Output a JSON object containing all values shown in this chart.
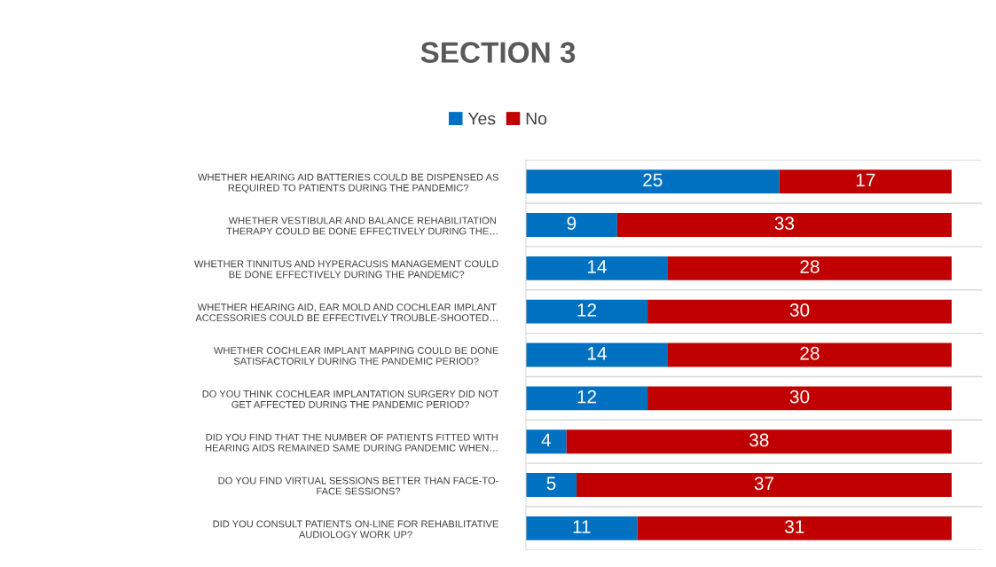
{
  "chart_data": {
    "type": "bar",
    "orientation": "horizontal",
    "stacked": true,
    "title": "SECTION 3",
    "categories": [
      "WHETHER HEARING AID BATTERIES COULD BE DISPENSED AS\nREQUIRED TO PATIENTS DURING THE PANDEMIC?",
      "WHETHER VESTIBULAR AND BALANCE REHABILITATION\nTHERAPY COULD BE DONE EFFECTIVELY DURING THE…",
      "WHETHER TINNITUS AND HYPERACUSIS MANAGEMENT COULD\nBE DONE EFFECTIVELY DURING THE PANDEMIC?",
      "WHETHER HEARING AID, EAR MOLD AND COCHLEAR IMPLANT\nACCESSORIES COULD BE EFFECTIVELY TROUBLE-SHOOTED…",
      "WHETHER COCHLEAR IMPLANT MAPPING COULD BE DONE\nSATISFACTORILY DURING THE PANDEMIC PERIOD?",
      "DO YOU THINK COCHLEAR IMPLANTATION SURGERY DID NOT\nGET AFFECTED DURING THE PANDEMIC PERIOD?",
      "DID YOU FIND THAT THE NUMBER OF PATIENTS FITTED WITH\nHEARING AIDS REMAINED SAME DURING PANDEMIC WHEN…",
      "DO YOU FIND VIRTUAL SESSIONS BETTER THAN FACE-TO-\nFACE SESSIONS?",
      "DID YOU CONSULT PATIENTS ON-LINE FOR REHABILITATIVE\nAUDIOLOGY WORK UP?"
    ],
    "series": [
      {
        "name": "Yes",
        "color": "#0070c0",
        "values": [
          25,
          9,
          14,
          12,
          14,
          12,
          4,
          5,
          11
        ]
      },
      {
        "name": "No",
        "color": "#c00000",
        "values": [
          17,
          33,
          28,
          30,
          28,
          30,
          38,
          37,
          31
        ]
      }
    ],
    "xlim": [
      0,
      45
    ],
    "data_labels": true,
    "legend": "top",
    "grid": "y",
    "tick_labels": "y"
  }
}
